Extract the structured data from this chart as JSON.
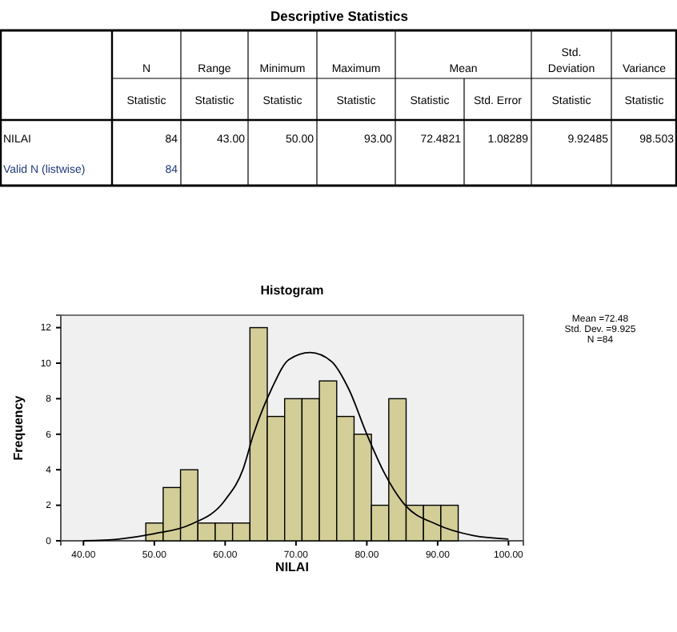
{
  "chart_data": [
    {
      "type": "other",
      "title": "Descriptive Statistics",
      "annotations": [
        "N",
        "Range",
        "Minimum",
        "Maximum",
        "Mean",
        "Std. Deviation",
        "Variance",
        "Statistic",
        "Statistic",
        "Statistic",
        "Statistic",
        "Statistic",
        "Std. Error",
        "Statistic",
        "Statistic",
        "NILAI",
        "84",
        "43.00",
        "50.00",
        "93.00",
        "72.4821",
        "1.08289",
        "9.92485",
        "98.503",
        "Valid N (listwise)",
        "84"
      ]
    },
    {
      "type": "histogram",
      "title": "Histogram",
      "xlabel": "NILAI",
      "ylabel": "Frequency",
      "color": "#d3ce97",
      "bins": [
        48.8,
        51.25,
        53.7,
        56.15,
        58.6,
        61.05,
        63.5,
        65.95,
        68.4,
        70.85,
        73.3,
        75.75,
        78.2,
        80.65,
        83.1,
        85.55,
        88,
        90.45,
        92.9
      ],
      "values": [
        1,
        3,
        4,
        1,
        1,
        1,
        12,
        7,
        8,
        8,
        9,
        7,
        6,
        2,
        8,
        2,
        2,
        2
      ],
      "series": [
        {
          "type": "line",
          "color": "#000000",
          "x": [
            40,
            45,
            50,
            55,
            60,
            62.5,
            64,
            66.5,
            69,
            72,
            75,
            77.5,
            80,
            82.5,
            85,
            90,
            95,
            100
          ],
          "values": [
            0,
            0.1,
            0.4,
            0.9,
            2.3,
            4,
            6,
            8.5,
            10.2,
            10.6,
            10.1,
            8.5,
            6,
            3.8,
            2.2,
            0.9,
            0.3,
            0.1
          ]
        }
      ],
      "xlim": [
        36.8,
        102.1
      ],
      "ylim": [
        0,
        12.7
      ],
      "xticks": [
        {
          "value": 40,
          "label": "40.00"
        },
        {
          "value": 50,
          "label": "50.00"
        },
        {
          "value": 60,
          "label": "60.00"
        },
        {
          "value": 70,
          "label": "70.00"
        },
        {
          "value": 80,
          "label": "80.00"
        },
        {
          "value": 90,
          "label": "90.00"
        },
        {
          "value": 100,
          "label": "100.00"
        }
      ],
      "yticks": [
        0,
        2,
        4,
        6,
        8,
        10,
        12
      ],
      "annotations": [
        "Mean =72.48",
        "Std. Dev. =9.925",
        "N =84"
      ]
    }
  ]
}
